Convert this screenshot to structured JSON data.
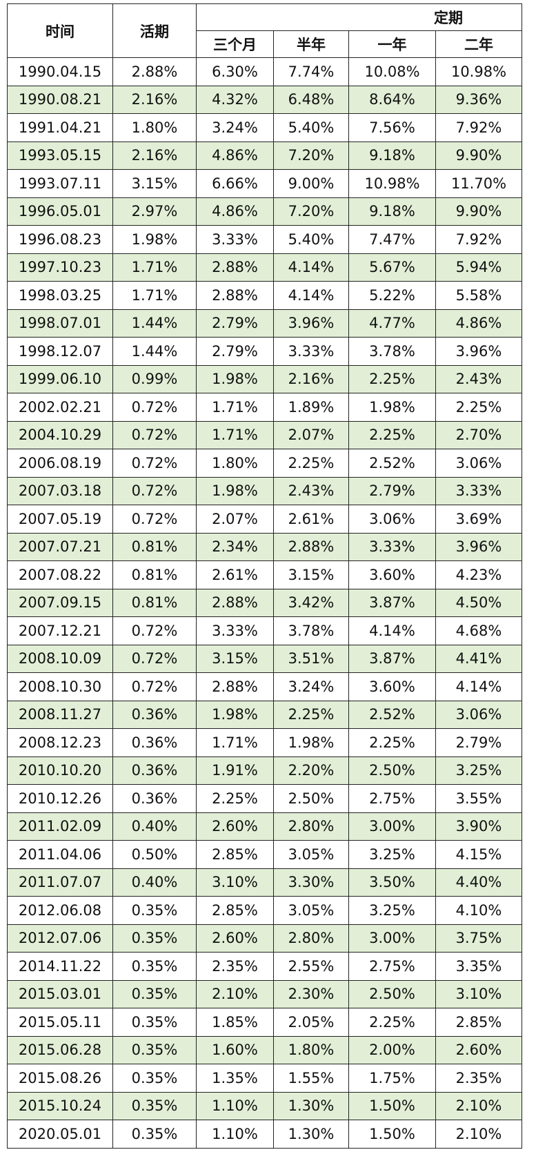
{
  "header": {
    "time": "时间",
    "demand": "活期",
    "fixed": "定期",
    "terms": [
      "三个月",
      "半年",
      "一年",
      "二年"
    ]
  },
  "rows": [
    [
      "1990.04.15",
      "2.88%",
      "6.30%",
      "7.74%",
      "10.08%",
      "10.98%"
    ],
    [
      "1990.08.21",
      "2.16%",
      "4.32%",
      "6.48%",
      "8.64%",
      "9.36%"
    ],
    [
      "1991.04.21",
      "1.80%",
      "3.24%",
      "5.40%",
      "7.56%",
      "7.92%"
    ],
    [
      "1993.05.15",
      "2.16%",
      "4.86%",
      "7.20%",
      "9.18%",
      "9.90%"
    ],
    [
      "1993.07.11",
      "3.15%",
      "6.66%",
      "9.00%",
      "10.98%",
      "11.70%"
    ],
    [
      "1996.05.01",
      "2.97%",
      "4.86%",
      "7.20%",
      "9.18%",
      "9.90%"
    ],
    [
      "1996.08.23",
      "1.98%",
      "3.33%",
      "5.40%",
      "7.47%",
      "7.92%"
    ],
    [
      "1997.10.23",
      "1.71%",
      "2.88%",
      "4.14%",
      "5.67%",
      "5.94%"
    ],
    [
      "1998.03.25",
      "1.71%",
      "2.88%",
      "4.14%",
      "5.22%",
      "5.58%"
    ],
    [
      "1998.07.01",
      "1.44%",
      "2.79%",
      "3.96%",
      "4.77%",
      "4.86%"
    ],
    [
      "1998.12.07",
      "1.44%",
      "2.79%",
      "3.33%",
      "3.78%",
      "3.96%"
    ],
    [
      "1999.06.10",
      "0.99%",
      "1.98%",
      "2.16%",
      "2.25%",
      "2.43%"
    ],
    [
      "2002.02.21",
      "0.72%",
      "1.71%",
      "1.89%",
      "1.98%",
      "2.25%"
    ],
    [
      "2004.10.29",
      "0.72%",
      "1.71%",
      "2.07%",
      "2.25%",
      "2.70%"
    ],
    [
      "2006.08.19",
      "0.72%",
      "1.80%",
      "2.25%",
      "2.52%",
      "3.06%"
    ],
    [
      "2007.03.18",
      "0.72%",
      "1.98%",
      "2.43%",
      "2.79%",
      "3.33%"
    ],
    [
      "2007.05.19",
      "0.72%",
      "2.07%",
      "2.61%",
      "3.06%",
      "3.69%"
    ],
    [
      "2007.07.21",
      "0.81%",
      "2.34%",
      "2.88%",
      "3.33%",
      "3.96%"
    ],
    [
      "2007.08.22",
      "0.81%",
      "2.61%",
      "3.15%",
      "3.60%",
      "4.23%"
    ],
    [
      "2007.09.15",
      "0.81%",
      "2.88%",
      "3.42%",
      "3.87%",
      "4.50%"
    ],
    [
      "2007.12.21",
      "0.72%",
      "3.33%",
      "3.78%",
      "4.14%",
      "4.68%"
    ],
    [
      "2008.10.09",
      "0.72%",
      "3.15%",
      "3.51%",
      "3.87%",
      "4.41%"
    ],
    [
      "2008.10.30",
      "0.72%",
      "2.88%",
      "3.24%",
      "3.60%",
      "4.14%"
    ],
    [
      "2008.11.27",
      "0.36%",
      "1.98%",
      "2.25%",
      "2.52%",
      "3.06%"
    ],
    [
      "2008.12.23",
      "0.36%",
      "1.71%",
      "1.98%",
      "2.25%",
      "2.79%"
    ],
    [
      "2010.10.20",
      "0.36%",
      "1.91%",
      "2.20%",
      "2.50%",
      "3.25%"
    ],
    [
      "2010.12.26",
      "0.36%",
      "2.25%",
      "2.50%",
      "2.75%",
      "3.55%"
    ],
    [
      "2011.02.09",
      "0.40%",
      "2.60%",
      "2.80%",
      "3.00%",
      "3.90%"
    ],
    [
      "2011.04.06",
      "0.50%",
      "2.85%",
      "3.05%",
      "3.25%",
      "4.15%"
    ],
    [
      "2011.07.07",
      "0.40%",
      "3.10%",
      "3.30%",
      "3.50%",
      "4.40%"
    ],
    [
      "2012.06.08",
      "0.35%",
      "2.85%",
      "3.05%",
      "3.25%",
      "4.10%"
    ],
    [
      "2012.07.06",
      "0.35%",
      "2.60%",
      "2.80%",
      "3.00%",
      "3.75%"
    ],
    [
      "2014.11.22",
      "0.35%",
      "2.35%",
      "2.55%",
      "2.75%",
      "3.35%"
    ],
    [
      "2015.03.01",
      "0.35%",
      "2.10%",
      "2.30%",
      "2.50%",
      "3.10%"
    ],
    [
      "2015.05.11",
      "0.35%",
      "1.85%",
      "2.05%",
      "2.25%",
      "2.85%"
    ],
    [
      "2015.06.28",
      "0.35%",
      "1.60%",
      "1.80%",
      "2.00%",
      "2.60%"
    ],
    [
      "2015.08.26",
      "0.35%",
      "1.35%",
      "1.55%",
      "1.75%",
      "2.35%"
    ],
    [
      "2015.10.24",
      "0.35%",
      "1.10%",
      "1.30%",
      "1.50%",
      "2.10%"
    ],
    [
      "2020.05.01",
      "0.35%",
      "1.10%",
      "1.30%",
      "1.50%",
      "2.10%"
    ]
  ]
}
